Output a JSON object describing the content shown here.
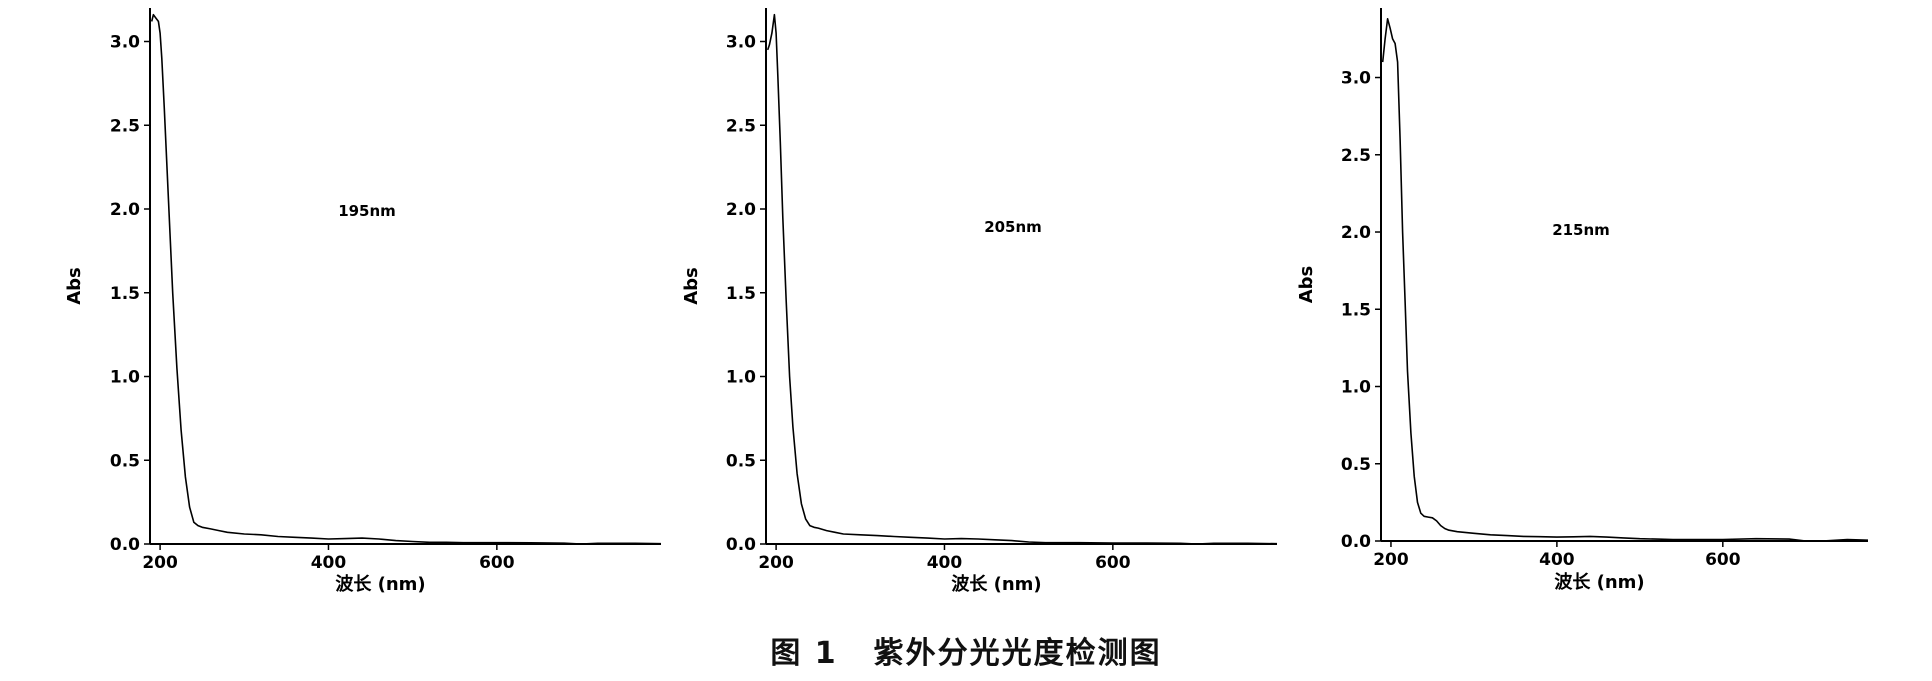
{
  "chart_data": [
    {
      "type": "line",
      "annotation": "195nm",
      "xlabel": "波长 (nm)",
      "ylabel": "Abs",
      "xlim": [
        188,
        795
      ],
      "ylim": [
        0,
        3.2
      ],
      "xticks": [
        200,
        400,
        600
      ],
      "yticks": [
        0.0,
        0.5,
        1.0,
        1.5,
        2.0,
        2.5,
        3.0
      ],
      "ytick_labels": [
        "0.0",
        "0.5",
        "1.0",
        "1.5",
        "2.0",
        "2.5",
        "3.0"
      ],
      "series": [
        {
          "x": [
            190,
            192,
            195,
            198,
            200,
            202,
            205,
            210,
            215,
            220,
            225,
            230,
            235,
            240,
            245,
            250,
            260,
            270,
            280,
            300,
            320,
            340,
            360,
            380,
            400,
            420,
            440,
            460,
            480,
            500,
            520,
            540,
            560,
            600,
            640,
            680,
            700,
            720,
            760,
            795
          ],
          "y": [
            3.12,
            3.16,
            3.14,
            3.12,
            3.05,
            2.9,
            2.6,
            2.05,
            1.5,
            1.05,
            0.68,
            0.4,
            0.22,
            0.13,
            0.11,
            0.1,
            0.09,
            0.08,
            0.07,
            0.06,
            0.055,
            0.045,
            0.04,
            0.035,
            0.03,
            0.032,
            0.035,
            0.03,
            0.02,
            0.015,
            0.01,
            0.01,
            0.008,
            0.008,
            0.007,
            0.005,
            0.0,
            0.004,
            0.004,
            0.002
          ]
        }
      ]
    },
    {
      "type": "line",
      "annotation": "205nm",
      "xlabel": "波长 (nm)",
      "ylabel": "Abs",
      "xlim": [
        188,
        795
      ],
      "ylim": [
        0,
        3.2
      ],
      "xticks": [
        200,
        400,
        600
      ],
      "yticks": [
        0.0,
        0.5,
        1.0,
        1.5,
        2.0,
        2.5,
        3.0
      ],
      "ytick_labels": [
        "0.0",
        "0.5",
        "1.0",
        "1.5",
        "2.0",
        "2.5",
        "3.0"
      ],
      "series": [
        {
          "x": [
            190,
            192,
            195,
            198,
            200,
            202,
            205,
            208,
            212,
            216,
            220,
            225,
            230,
            235,
            240,
            245,
            250,
            260,
            270,
            280,
            300,
            320,
            340,
            360,
            380,
            400,
            420,
            440,
            460,
            480,
            500,
            520,
            540,
            560,
            600,
            640,
            680,
            700,
            720,
            760,
            795
          ],
          "y": [
            2.95,
            2.98,
            3.05,
            3.16,
            3.05,
            2.8,
            2.4,
            1.95,
            1.45,
            1.0,
            0.7,
            0.42,
            0.24,
            0.15,
            0.11,
            0.1,
            0.095,
            0.08,
            0.07,
            0.06,
            0.055,
            0.05,
            0.045,
            0.04,
            0.035,
            0.03,
            0.032,
            0.03,
            0.025,
            0.02,
            0.012,
            0.008,
            0.008,
            0.008,
            0.006,
            0.006,
            0.004,
            0.0,
            0.004,
            0.004,
            0.002
          ]
        }
      ]
    },
    {
      "type": "line",
      "annotation": "215nm",
      "xlabel": "波长 (nm)",
      "ylabel": "Abs",
      "xlim": [
        188,
        775
      ],
      "ylim": [
        0,
        3.45
      ],
      "xticks": [
        200,
        400,
        600
      ],
      "yticks": [
        0.0,
        0.5,
        1.0,
        1.5,
        2.0,
        2.5,
        3.0
      ],
      "ytick_labels": [
        "0.0",
        "0.5",
        "1.0",
        "1.5",
        "2.0",
        "2.5",
        "3.0"
      ],
      "series": [
        {
          "x": [
            190,
            193,
            196,
            199,
            202,
            205,
            208,
            211,
            214,
            217,
            220,
            224,
            228,
            232,
            236,
            240,
            245,
            250,
            255,
            260,
            265,
            270,
            280,
            300,
            320,
            340,
            360,
            380,
            400,
            420,
            440,
            460,
            480,
            500,
            520,
            540,
            560,
            600,
            640,
            680,
            700,
            720,
            750,
            775
          ],
          "y": [
            3.1,
            3.25,
            3.38,
            3.32,
            3.25,
            3.22,
            3.1,
            2.6,
            2.0,
            1.55,
            1.1,
            0.7,
            0.42,
            0.25,
            0.18,
            0.16,
            0.155,
            0.15,
            0.13,
            0.1,
            0.08,
            0.07,
            0.06,
            0.05,
            0.04,
            0.035,
            0.03,
            0.028,
            0.025,
            0.027,
            0.03,
            0.025,
            0.02,
            0.015,
            0.012,
            0.01,
            0.01,
            0.01,
            0.015,
            0.012,
            0.0,
            0.0,
            0.01,
            0.005
          ]
        }
      ]
    }
  ],
  "caption": {
    "figure_number": "图 1",
    "title": "紫外分光光度检测图"
  }
}
